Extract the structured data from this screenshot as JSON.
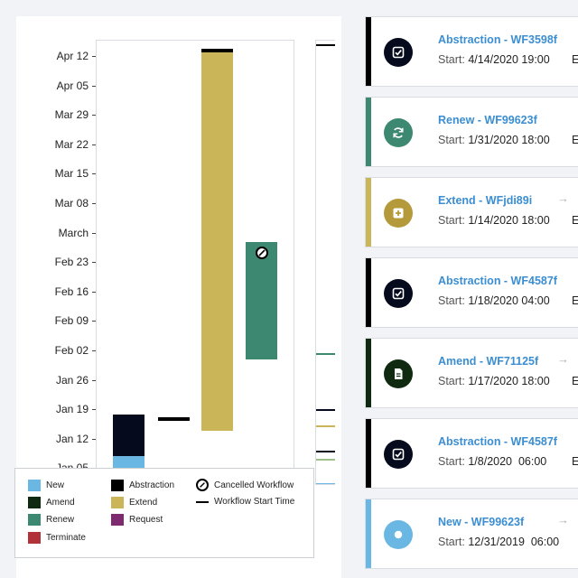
{
  "chart_data": {
    "type": "bar",
    "orientation": "vertical-timeline",
    "y_axis": {
      "ticks": [
        "Apr 12",
        "Apr 05",
        "Mar 29",
        "Mar 22",
        "Mar 15",
        "Mar 08",
        "March",
        "Feb 23",
        "Feb 16",
        "Feb 09",
        "Feb 02",
        "Jan 26",
        "Jan 19",
        "Jan 12",
        "Jan 05"
      ],
      "range": [
        "2019-12-31",
        "2020-04-14"
      ]
    },
    "grid": false,
    "series": [
      {
        "name": "New",
        "color": "#6bb7e3",
        "start": "2019-12-31",
        "end": "2020-01-08"
      },
      {
        "name": "Abstraction",
        "color": "#050b1c",
        "start": "2020-01-08",
        "end": "2020-01-18"
      },
      {
        "name": "Amend",
        "start_line": "2020-01-17"
      },
      {
        "name": "Extend",
        "color": "#cbb559",
        "start": "2020-01-14",
        "end": "2020-04-14"
      },
      {
        "name": "Renew",
        "color": "#3d8870",
        "start": "2020-01-31",
        "end": "2020-02-28",
        "cancelled": true
      }
    ]
  },
  "legend": {
    "items": [
      {
        "label": "New",
        "color": "#6bb7e3"
      },
      {
        "label": "Amend",
        "color": "#0f2a10"
      },
      {
        "label": "Renew",
        "color": "#3d8870"
      },
      {
        "label": "Terminate",
        "color": "#b13239"
      },
      {
        "label": "Abstraction",
        "color": "#000000"
      },
      {
        "label": "Extend",
        "color": "#cbb559"
      },
      {
        "label": "Request",
        "color": "#7e2a6e"
      }
    ],
    "cancelled_label": "Cancelled Workflow",
    "start_time_label": "Workflow Start Time"
  },
  "cards": [
    {
      "title": "Abstraction - WF3598f",
      "start_label": "Start:",
      "start_value": "4/14/2020 19:00",
      "trail": "E",
      "accent": "#000000",
      "icon": "checkbox-icon",
      "icon_bg": "#050b1c",
      "arrow": "→"
    },
    {
      "title": "Renew - WF99623f",
      "start_label": "Start:",
      "start_value": "1/31/2020 18:00",
      "trail": "E",
      "accent": "#3d8870",
      "icon": "refresh-icon",
      "icon_bg": "#3d8870",
      "arrow": ""
    },
    {
      "title": "Extend - WFjdi89i",
      "start_label": "Start:",
      "start_value": "1/14/2020 18:00",
      "trail": "E",
      "accent": "#cbb559",
      "icon": "plus-square-icon",
      "icon_bg": "#b59a3b",
      "arrow": "→"
    },
    {
      "title": "Abstraction - WF4587f",
      "start_label": "Start:",
      "start_value": "1/18/2020 04:00",
      "trail": "E",
      "accent": "#000000",
      "icon": "checkbox-icon",
      "icon_bg": "#050b1c",
      "arrow": "→"
    },
    {
      "title": "Amend - WF71125f",
      "start_label": "Start:",
      "start_value": "1/17/2020 18:00",
      "trail": "E",
      "accent": "#0f2a10",
      "icon": "document-icon",
      "icon_bg": "#0f2a10",
      "arrow": "→"
    },
    {
      "title": "Abstraction - WF4587f",
      "start_label": "Start:",
      "start_value": "1/8/2020  06:00",
      "trail": "E",
      "accent": "#000000",
      "icon": "checkbox-icon",
      "icon_bg": "#050b1c",
      "arrow": ""
    },
    {
      "title": "New - WF99623f",
      "start_label": "Start:",
      "start_value": "12/31/2019  06:00",
      "trail": "",
      "accent": "#6bb7e3",
      "icon": "circle-icon",
      "icon_bg": "#6bb7e3",
      "arrow": "→"
    }
  ]
}
